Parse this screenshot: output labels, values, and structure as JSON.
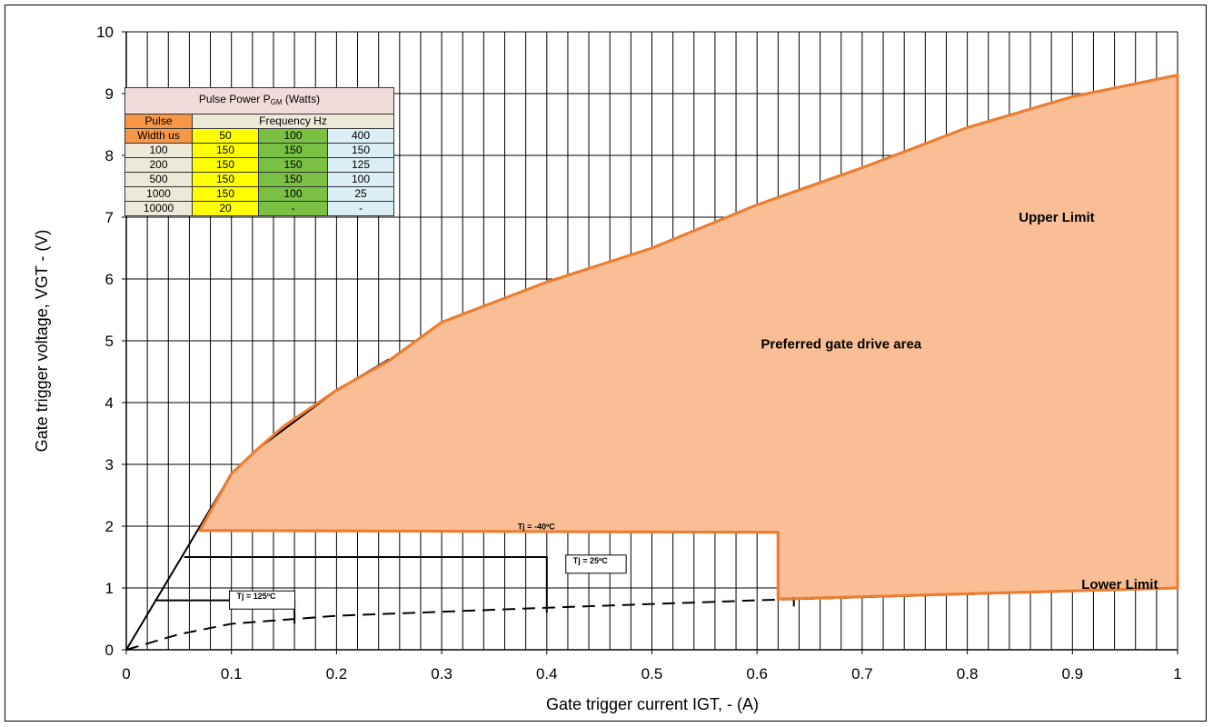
{
  "chart_data": {
    "type": "area",
    "xlabel": "Gate trigger current IGT, - (A)",
    "ylabel": "Gate trigger voltage, VGT - (V)",
    "xlim": [
      0,
      1
    ],
    "ylim": [
      0,
      10
    ],
    "x_ticks": [
      "0",
      "0.1",
      "0.2",
      "0.3",
      "0.4",
      "0.5",
      "0.6",
      "0.7",
      "0.8",
      "0.9",
      "1"
    ],
    "y_ticks": [
      "0",
      "1",
      "2",
      "3",
      "4",
      "5",
      "6",
      "7",
      "8",
      "9",
      "10"
    ],
    "x_minor_step": 0.02,
    "grid": true,
    "colors": {
      "area_fill": "#f9be96",
      "area_edge": "#ed7d31",
      "lines": "#000000"
    },
    "preferred_area_polygon": [
      [
        0.07,
        1.93
      ],
      [
        0.1,
        2.85
      ],
      [
        0.125,
        3.25
      ],
      [
        0.15,
        3.62
      ],
      [
        0.2,
        4.2
      ],
      [
        0.25,
        4.68
      ],
      [
        0.3,
        5.3
      ],
      [
        0.4,
        5.95
      ],
      [
        0.5,
        6.5
      ],
      [
        0.6,
        7.2
      ],
      [
        0.7,
        7.8
      ],
      [
        0.8,
        8.45
      ],
      [
        0.9,
        8.95
      ],
      [
        1.0,
        9.3
      ],
      [
        1.0,
        1.0
      ],
      [
        0.62,
        0.82
      ],
      [
        0.62,
        1.9
      ],
      [
        0.07,
        1.93
      ]
    ],
    "series": [
      {
        "style": "solid",
        "points": [
          [
            0,
            0
          ],
          [
            0.1,
            2.85
          ],
          [
            0.125,
            3.25
          ],
          [
            0.2,
            4.2
          ],
          [
            0.25,
            4.7
          ]
        ]
      },
      {
        "style": "dashed",
        "points": [
          [
            0,
            0
          ],
          [
            0.05,
            0.25
          ],
          [
            0.1,
            0.42
          ],
          [
            0.2,
            0.55
          ],
          [
            0.4,
            0.68
          ],
          [
            0.6,
            0.8
          ],
          [
            1.0,
            1.0
          ]
        ]
      },
      {
        "style": "solid",
        "points": [
          [
            0.07,
            1.93
          ],
          [
            0.62,
            1.9
          ],
          [
            0.62,
            0.82
          ]
        ]
      },
      {
        "style": "solid",
        "points": [
          [
            0.055,
            1.5
          ],
          [
            0.4,
            1.5
          ],
          [
            0.4,
            0.6
          ]
        ]
      },
      {
        "style": "solid",
        "points": [
          [
            0.027,
            0.8
          ],
          [
            0.16,
            0.8
          ],
          [
            0.16,
            0.42
          ]
        ]
      },
      {
        "style": "solid",
        "points": [
          [
            0.635,
            0.85
          ],
          [
            0.635,
            0.7
          ]
        ]
      }
    ],
    "annotations": [
      {
        "text": "Upper Limit",
        "x": 0.885,
        "y": 7.0,
        "boxed": false,
        "size": "large"
      },
      {
        "text": "Preferred gate drive area",
        "x": 0.68,
        "y": 4.95,
        "boxed": false,
        "size": "large"
      },
      {
        "text": "Lower Limit",
        "x": 0.945,
        "y": 1.06,
        "boxed": false,
        "size": "large"
      },
      {
        "text": "Tj = -40ºC",
        "x": 0.39,
        "y": 1.95,
        "boxed": false,
        "size": "small"
      },
      {
        "text": "Tj = 25ºC",
        "x": 0.425,
        "y": 1.4,
        "boxed": true,
        "size": "small"
      },
      {
        "text": "Tj = 125ºC",
        "x": 0.105,
        "y": 0.82,
        "boxed": true,
        "size": "small"
      }
    ]
  },
  "pulse_table": {
    "title": "Pulse Power P",
    "title_sub": "GM",
    "title_suffix": " (Watts)",
    "pw_header_1": "Pulse",
    "pw_header_2": "Width us",
    "freq_header": "Frequency Hz",
    "freq_cols": [
      "50",
      "100",
      "400"
    ],
    "rows": [
      {
        "width": "100",
        "v50": "150",
        "v100": "150",
        "v400": "150"
      },
      {
        "width": "200",
        "v50": "150",
        "v100": "150",
        "v400": "125"
      },
      {
        "width": "500",
        "v50": "150",
        "v100": "150",
        "v400": "100"
      },
      {
        "width": "1000",
        "v50": "150",
        "v100": "100",
        "v400": "25"
      },
      {
        "width": "10000",
        "v50": "20",
        "v100": "-",
        "v400": "-"
      }
    ]
  }
}
